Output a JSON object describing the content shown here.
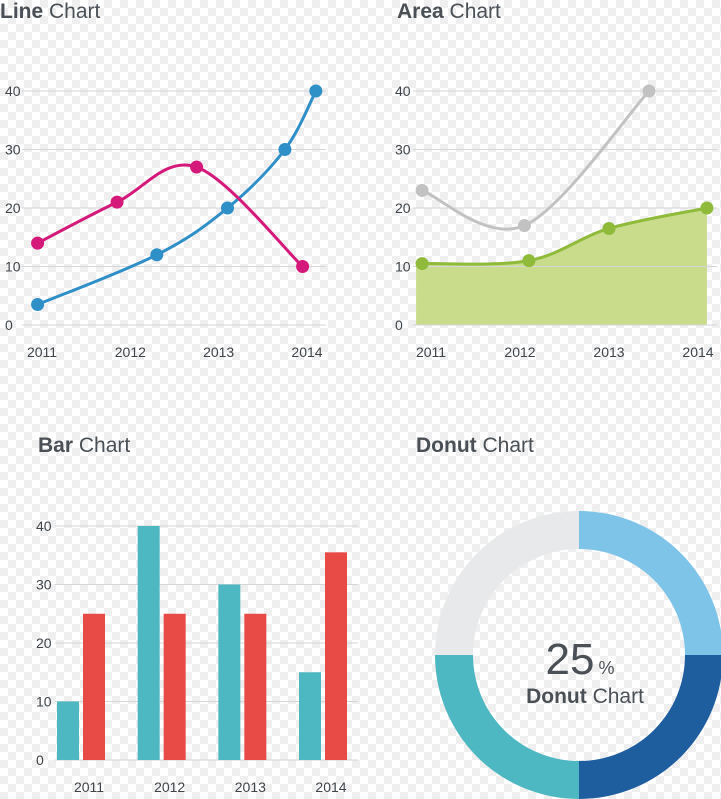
{
  "chart_data": [
    {
      "id": "line",
      "type": "line",
      "title_bold": "Line",
      "title_rest": " Chart",
      "categories": [
        "2011",
        "2012",
        "2013",
        "2014"
      ],
      "yticks": [
        "0",
        "10",
        "20",
        "30",
        "40"
      ],
      "ylim": [
        0,
        40
      ],
      "grid": true,
      "series": [
        {
          "color": "#2f8fc7",
          "x": [
            2010.95,
            2012.3,
            2013.1,
            2013.75,
            2014.1
          ],
          "y": [
            3.5,
            12,
            20,
            30,
            40
          ]
        },
        {
          "color": "#d4197a",
          "x": [
            2010.95,
            2011.85,
            2012.75,
            2013.95
          ],
          "y": [
            14,
            21,
            27,
            10
          ]
        }
      ]
    },
    {
      "id": "area",
      "type": "area",
      "title_bold": "Area",
      "title_rest": " Chart",
      "categories": [
        "2011",
        "2012",
        "2013",
        "2014"
      ],
      "yticks": [
        "0",
        "10",
        "20",
        "30",
        "40"
      ],
      "ylim": [
        0,
        40
      ],
      "grid": true,
      "series": [
        {
          "color": "#c2c2c2",
          "fill": null,
          "x": [
            2010.9,
            2012.05,
            2013.45
          ],
          "y": [
            23,
            17,
            40
          ]
        },
        {
          "color": "#8fba3a",
          "fill": "#c8dc8c",
          "x": [
            2010.9,
            2012.1,
            2013.0,
            2014.1
          ],
          "y": [
            10.5,
            11,
            16.5,
            20
          ]
        }
      ]
    },
    {
      "id": "bar",
      "type": "bar",
      "title_bold": "Bar",
      "title_rest": " Chart",
      "categories": [
        "2011",
        "2012",
        "2013",
        "2014"
      ],
      "yticks": [
        "0",
        "10",
        "20",
        "30",
        "40"
      ],
      "ylim": [
        0,
        40
      ],
      "grid": true,
      "series": [
        {
          "color": "#4db8c1",
          "values": [
            10,
            40,
            30,
            15
          ]
        },
        {
          "color": "#e84a45",
          "values": [
            25,
            25,
            25,
            35.5
          ]
        }
      ]
    },
    {
      "id": "donut",
      "type": "pie",
      "title_bold": "Donut",
      "title_rest": " Chart",
      "center_value": "25",
      "center_unit": "%",
      "center_label_bold": "Donut",
      "center_label_rest": " Chart",
      "values": [
        25,
        25,
        25,
        25
      ],
      "colors": [
        "#7dc4e8",
        "#1f5e9e",
        "#4db8c1",
        "#e8e9ea"
      ]
    }
  ]
}
